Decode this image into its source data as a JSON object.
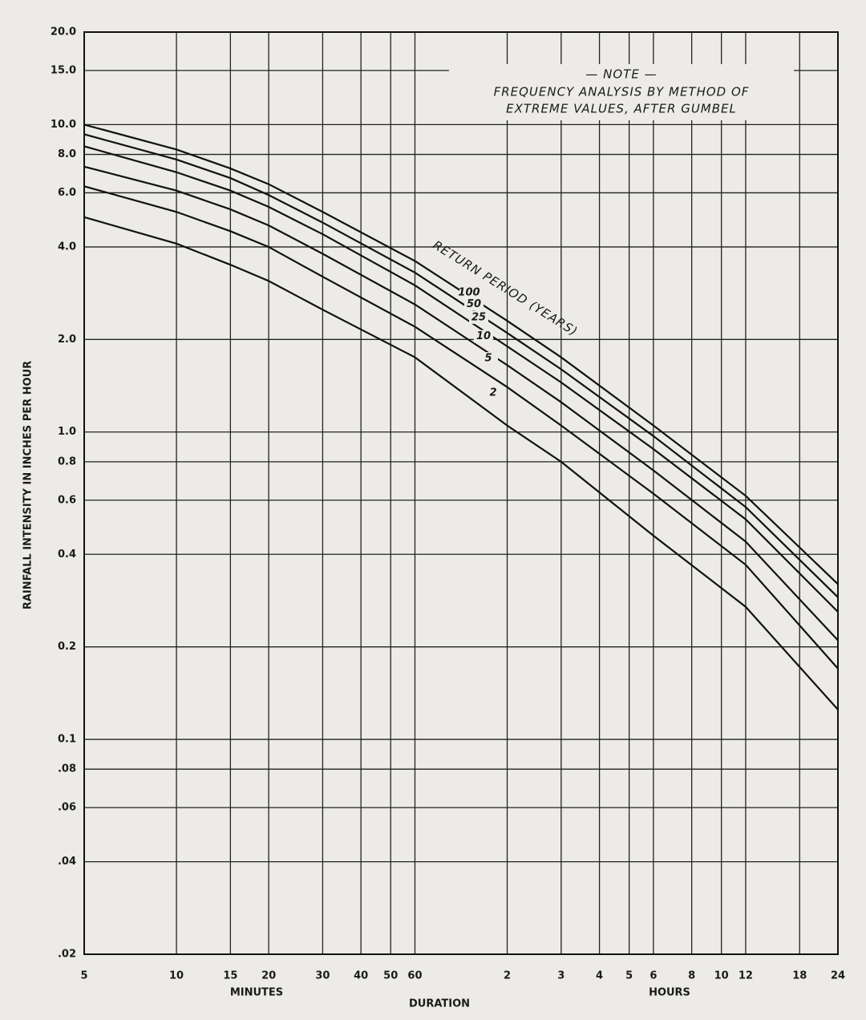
{
  "chart_data": {
    "type": "line",
    "xlabel": "DURATION",
    "xlabel_left": "MINUTES",
    "xlabel_right": "HOURS",
    "ylabel": "RAINFALL INTENSITY IN INCHES PER HOUR",
    "note": [
      "— NOTE —",
      "FREQUENCY ANALYSIS BY METHOD OF",
      "EXTREME VALUES, AFTER GUMBEL"
    ],
    "curve_label": "RETURN PERIOD (YEARS)",
    "xscale": "log",
    "yscale": "log",
    "grid": true,
    "x": [
      5,
      10,
      15,
      20,
      30,
      60,
      120,
      180,
      360,
      720,
      1440
    ],
    "series": [
      {
        "name": "100",
        "color": "#111111",
        "values": [
          10,
          8.3,
          7.2,
          6.4,
          5.2,
          3.6,
          2.3,
          1.75,
          1.05,
          0.62,
          0.32
        ]
      },
      {
        "name": "50",
        "color": "#111111",
        "values": [
          9.3,
          7.7,
          6.7,
          5.9,
          4.8,
          3.3,
          2.1,
          1.6,
          0.97,
          0.57,
          0.29
        ]
      },
      {
        "name": "25",
        "color": "#111111",
        "values": [
          8.5,
          7.0,
          6.1,
          5.4,
          4.4,
          3.0,
          1.9,
          1.45,
          0.88,
          0.52,
          0.26
        ]
      },
      {
        "name": "10",
        "color": "#111111",
        "values": [
          7.3,
          6.1,
          5.3,
          4.7,
          3.8,
          2.6,
          1.65,
          1.25,
          0.75,
          0.44,
          0.21
        ]
      },
      {
        "name": "5",
        "color": "#111111",
        "values": [
          6.3,
          5.2,
          4.5,
          4.0,
          3.2,
          2.2,
          1.4,
          1.05,
          0.63,
          0.37,
          0.17
        ]
      },
      {
        "name": "2",
        "color": "#111111",
        "values": [
          5.0,
          4.1,
          3.5,
          3.1,
          2.5,
          1.75,
          1.05,
          0.8,
          0.46,
          0.27,
          0.125
        ]
      }
    ],
    "xlim": [
      5,
      1440
    ],
    "ylim": [
      0.02,
      20
    ],
    "xticks": [
      5,
      10,
      15,
      20,
      30,
      40,
      50,
      60,
      {
        "value": 120,
        "label": "2"
      },
      {
        "value": 180,
        "label": "3"
      },
      {
        "value": 240,
        "label": "4"
      },
      {
        "value": 300,
        "label": "5"
      },
      {
        "value": 360,
        "label": "6"
      },
      {
        "value": 480,
        "label": "8"
      },
      {
        "value": 600,
        "label": "10"
      },
      {
        "value": 720,
        "label": "12"
      },
      {
        "value": 1080,
        "label": "18"
      },
      {
        "value": 1440,
        "label": "24"
      }
    ],
    "yticks": [
      {
        "value": 20,
        "label": "20.0"
      },
      {
        "value": 15,
        "label": "15.0"
      },
      {
        "value": 10,
        "label": "10.0"
      },
      {
        "value": 8,
        "label": "8.0"
      },
      {
        "value": 6,
        "label": "6.0"
      },
      {
        "value": 4,
        "label": "4.0"
      },
      {
        "value": 2,
        "label": "2.0"
      },
      {
        "value": 1,
        "label": "1.0"
      },
      0.8,
      0.6,
      0.4,
      0.2,
      0.1,
      {
        "value": 0.08,
        "label": ".08"
      },
      {
        "value": 0.06,
        "label": ".06"
      },
      {
        "value": 0.04,
        "label": ".04"
      },
      {
        "value": 0.02,
        "label": ".02"
      }
    ]
  }
}
